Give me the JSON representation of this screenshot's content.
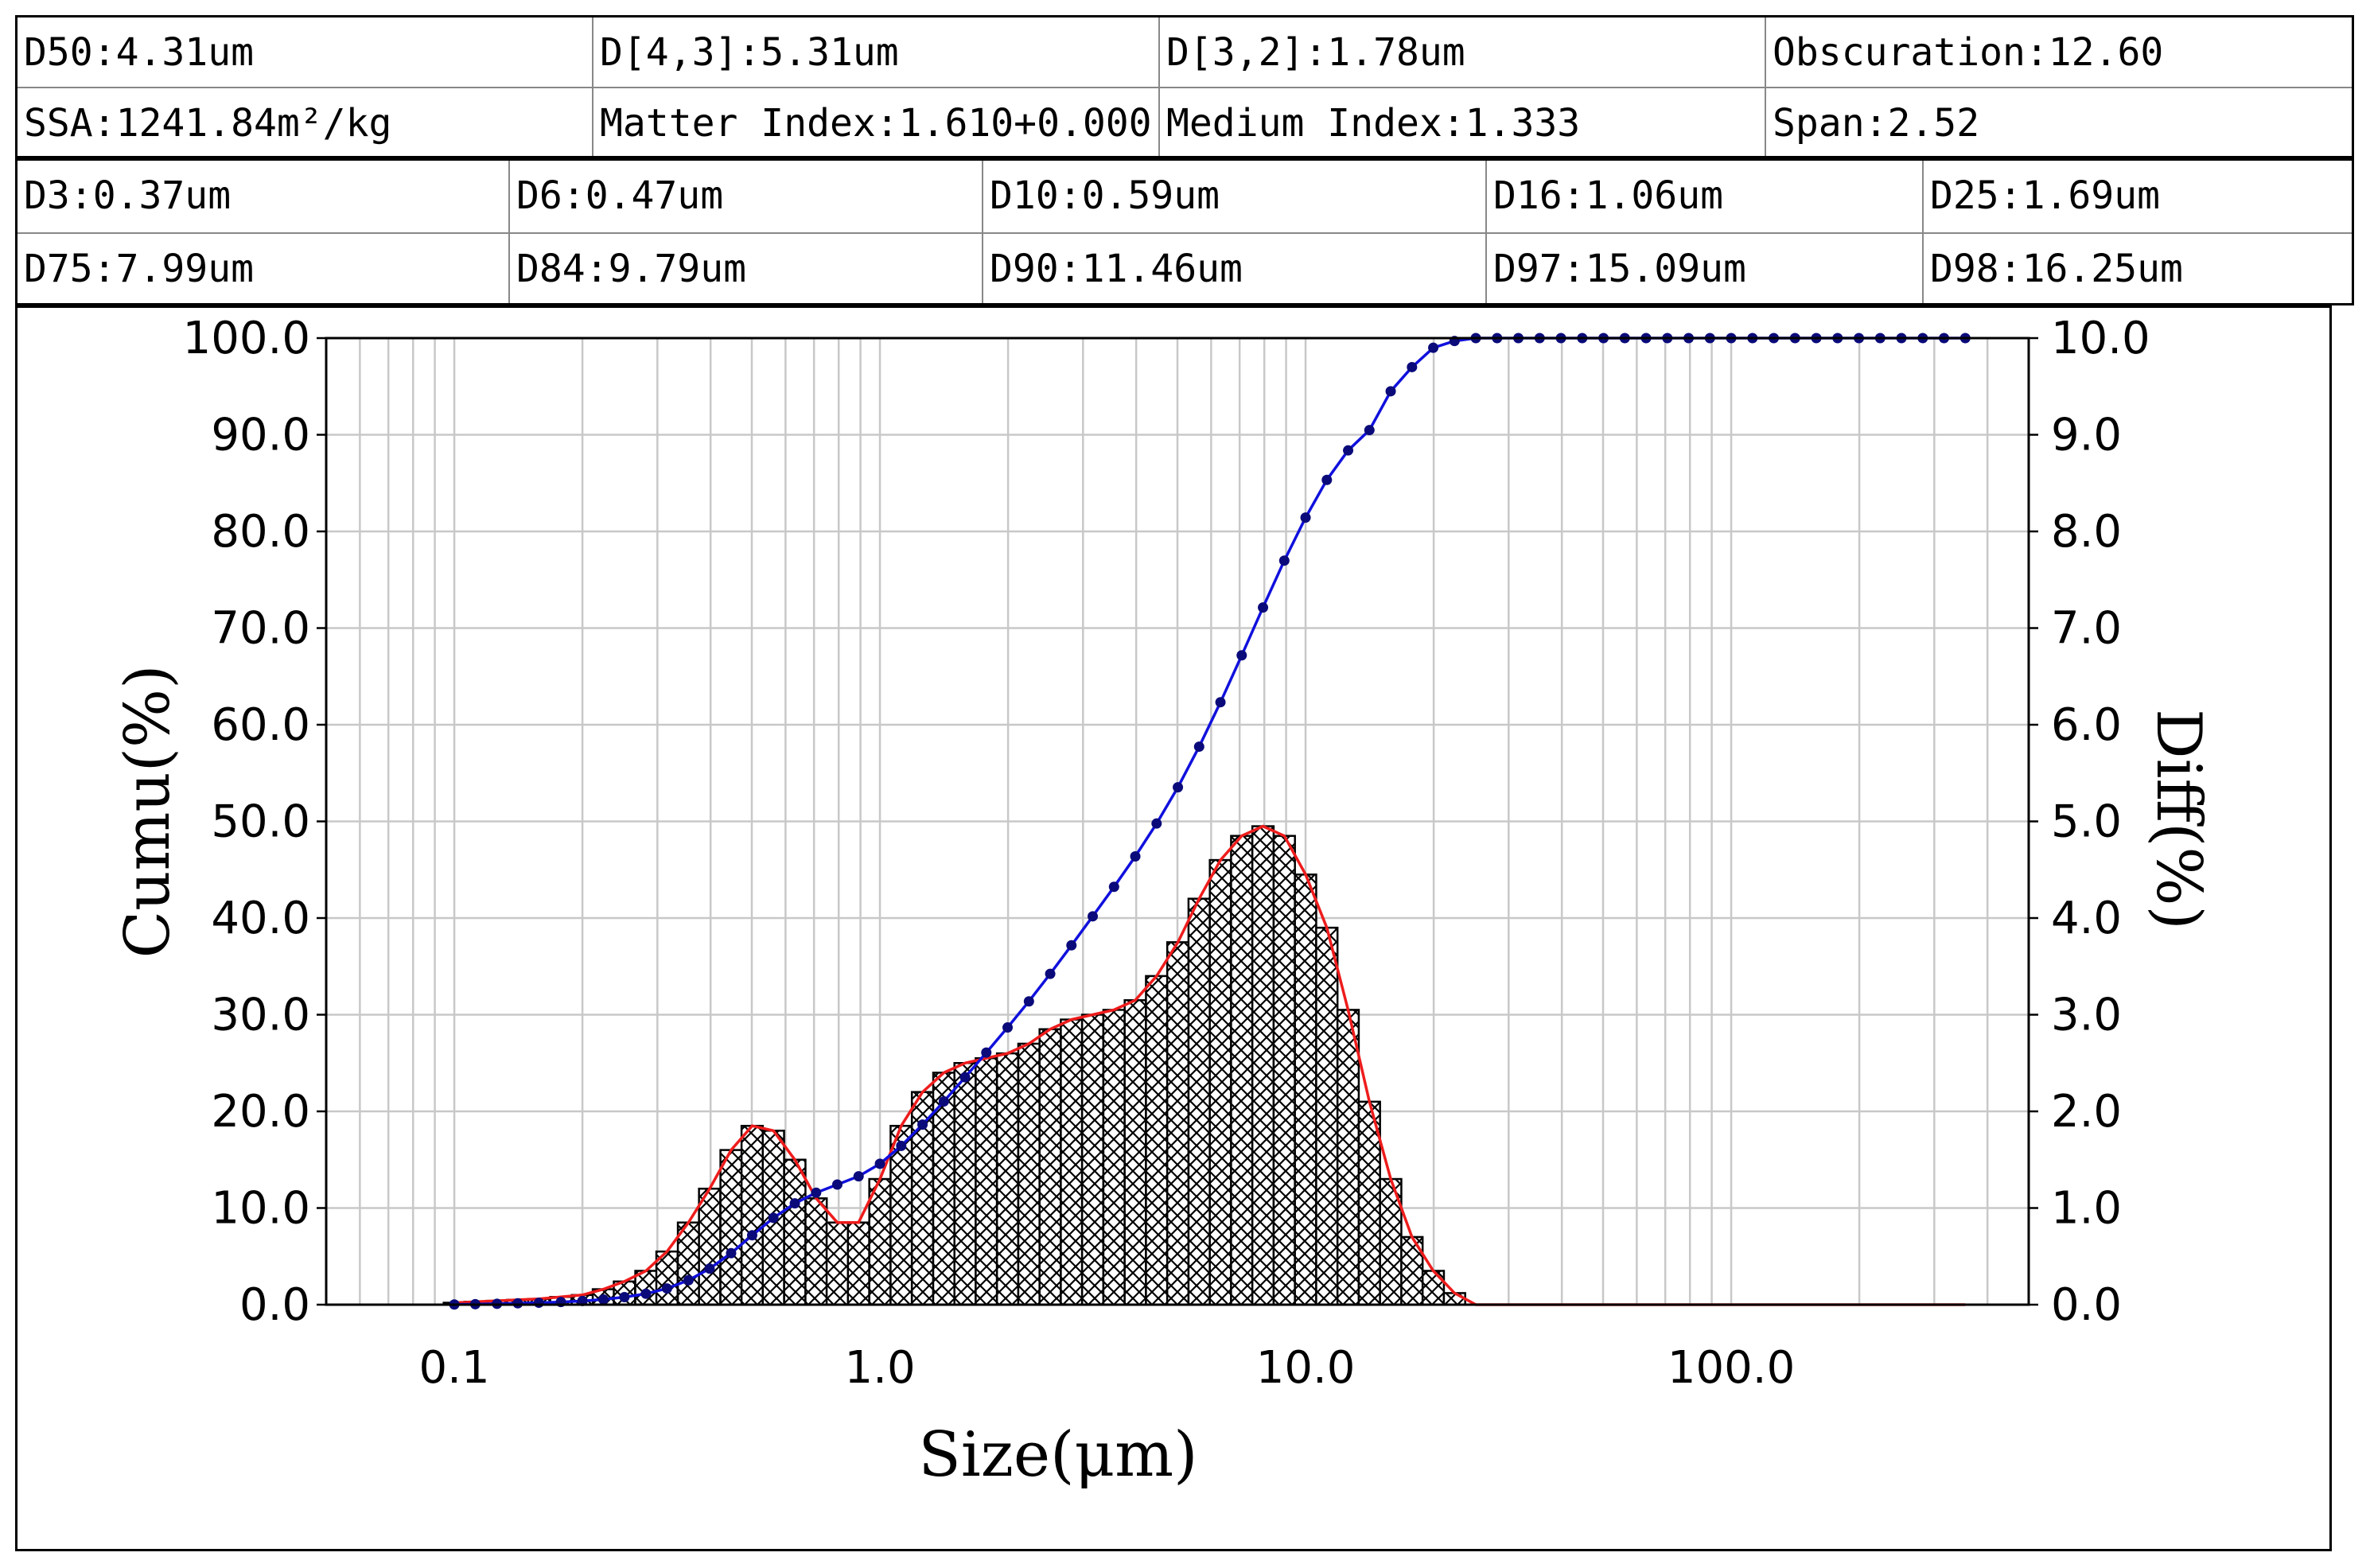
{
  "table1": {
    "row1": [
      "D50:4.31um",
      "D[4,3]:5.31um",
      "D[3,2]:1.78um",
      "Obscuration:12.60"
    ],
    "row2": [
      "SSA:1241.84m²/kg",
      "Matter Index:1.610+0.000",
      "Medium Index:1.333",
      "Span:2.52"
    ]
  },
  "table2": {
    "row1": [
      "D3:0.37um",
      "D6:0.47um",
      "D10:0.59um",
      "D16:1.06um",
      "D25:1.69um"
    ],
    "row2": [
      "D75:7.99um",
      "D84:9.79um",
      "D90:11.46um",
      "D97:15.09um",
      "D98:16.25um"
    ]
  },
  "chart_data": {
    "type": "bar",
    "title": "",
    "xlabel": "Size(μm)",
    "ylabel_left": "Cumu(%)",
    "ylabel_right": "Diff(%)",
    "x_scale": "log",
    "xlim": [
      0.05,
      500
    ],
    "ylim_left": [
      0,
      100
    ],
    "ylim_right": [
      0,
      10
    ],
    "x_tick_labels": [
      "0.1",
      "1.0",
      "10.0",
      "100.0"
    ],
    "y_left_tick_labels": [
      "0.0",
      "10.0",
      "20.0",
      "30.0",
      "40.0",
      "50.0",
      "60.0",
      "70.0",
      "80.0",
      "90.0",
      "100.0"
    ],
    "y_right_tick_labels": [
      "0.0",
      "1.0",
      "2.0",
      "3.0",
      "4.0",
      "5.0",
      "6.0",
      "7.0",
      "8.0",
      "9.0",
      "10.0"
    ],
    "grid": true,
    "diff_series": {
      "name": "Diff(%)",
      "sizes": [
        0.1,
        0.112,
        0.126,
        0.141,
        0.158,
        0.178,
        0.2,
        0.224,
        0.251,
        0.282,
        0.316,
        0.355,
        0.398,
        0.447,
        0.501,
        0.562,
        0.631,
        0.708,
        0.794,
        0.891,
        1.0,
        1.122,
        1.259,
        1.413,
        1.585,
        1.778,
        1.995,
        2.239,
        2.512,
        2.818,
        3.162,
        3.548,
        3.981,
        4.467,
        5.012,
        5.623,
        6.31,
        7.079,
        7.943,
        8.913,
        10.0,
        11.22,
        12.589,
        14.125,
        15.849,
        17.783,
        19.953,
        22.387,
        25.119
      ],
      "values": [
        0.02,
        0.03,
        0.04,
        0.05,
        0.06,
        0.08,
        0.1,
        0.16,
        0.24,
        0.35,
        0.55,
        0.85,
        1.2,
        1.6,
        1.85,
        1.8,
        1.5,
        1.1,
        0.85,
        0.85,
        1.3,
        1.85,
        2.2,
        2.4,
        2.5,
        2.55,
        2.6,
        2.7,
        2.85,
        2.95,
        3.0,
        3.05,
        3.15,
        3.4,
        3.75,
        4.2,
        4.6,
        4.85,
        4.95,
        4.85,
        4.45,
        3.9,
        3.05,
        2.1,
        1.3,
        0.7,
        0.35,
        0.12,
        0.0
      ]
    },
    "cumu_series": {
      "name": "Cumu(%)",
      "sizes": [
        0.1,
        0.112,
        0.126,
        0.141,
        0.158,
        0.178,
        0.2,
        0.224,
        0.251,
        0.282,
        0.316,
        0.355,
        0.398,
        0.447,
        0.501,
        0.562,
        0.631,
        0.708,
        0.794,
        0.891,
        1.0,
        1.122,
        1.259,
        1.413,
        1.585,
        1.778,
        1.995,
        2.239,
        2.512,
        2.818,
        3.162,
        3.548,
        3.981,
        4.467,
        5.012,
        5.623,
        6.31,
        7.079,
        7.943,
        8.913,
        10.0,
        11.22,
        12.589,
        14.125,
        15.849,
        17.783,
        19.953,
        22.387,
        25.119,
        28.184,
        31.623,
        35.481,
        39.811,
        44.668,
        50.119,
        56.234,
        63.096,
        70.795,
        79.433,
        89.125,
        100.0,
        112.202,
        125.893,
        141.254,
        158.489,
        177.828,
        199.526,
        223.872,
        251.189,
        281.838,
        316.228,
        354.813
      ],
      "values": [
        0.02,
        0.05,
        0.09,
        0.14,
        0.2,
        0.28,
        0.38,
        0.54,
        0.78,
        1.13,
        1.68,
        2.53,
        3.73,
        5.33,
        7.18,
        8.98,
        10.48,
        11.58,
        12.43,
        13.28,
        14.58,
        16.43,
        18.63,
        21.03,
        23.53,
        26.08,
        28.68,
        31.38,
        34.23,
        37.18,
        40.18,
        43.23,
        46.38,
        49.78,
        53.53,
        57.73,
        62.33,
        67.18,
        72.13,
        76.98,
        81.43,
        85.33,
        88.38,
        90.48,
        94.5,
        97.0,
        99.0,
        99.7,
        100.0,
        100.0,
        100.0,
        100.0,
        100.0,
        100.0,
        100.0,
        100.0,
        100.0,
        100.0,
        100.0,
        100.0,
        100.0,
        100.0,
        100.0,
        100.0,
        100.0,
        100.0,
        100.0,
        100.0,
        100.0,
        100.0,
        100.0,
        100.0
      ]
    },
    "colors": {
      "cumu_line": "#1010dd",
      "cumu_marker": "#0a0a7a",
      "diff_line": "#ee1c1c",
      "bar_edge": "#000000",
      "grid": "#c8c8c8"
    }
  }
}
